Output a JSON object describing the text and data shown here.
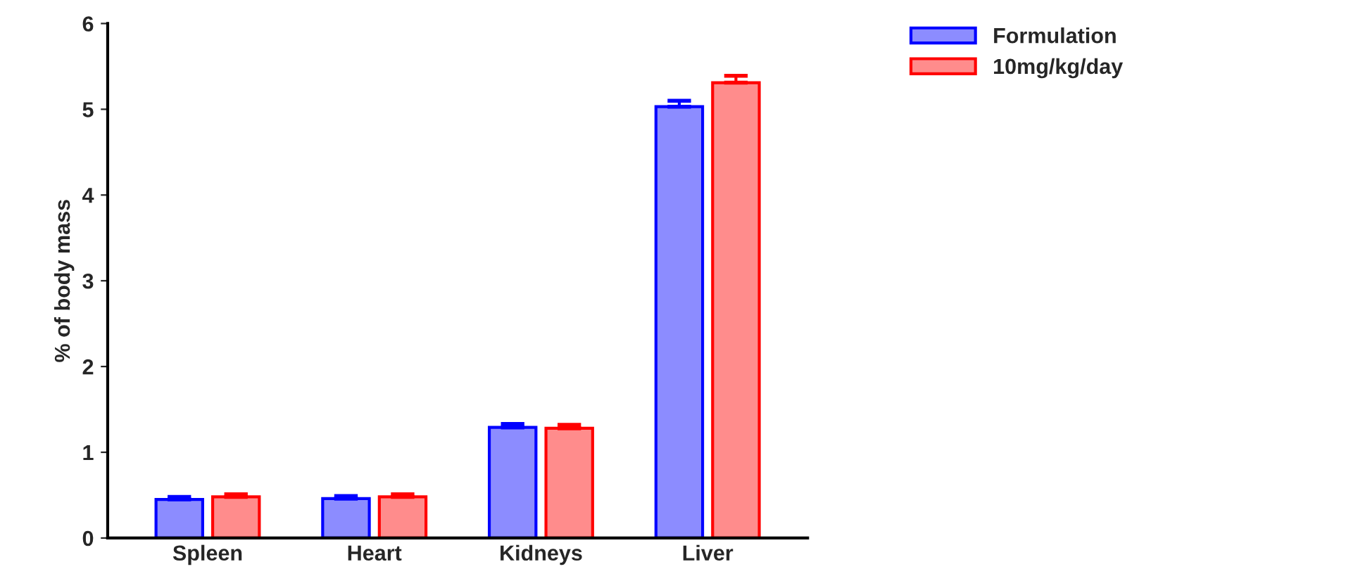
{
  "chart_data": {
    "type": "bar",
    "ylabel": "% of body mass",
    "categories": [
      "Spleen",
      "Heart",
      "Kidneys",
      "Liver"
    ],
    "series": [
      {
        "name": "Formulation",
        "color": "#0000ff",
        "values": [
          0.45,
          0.46,
          1.29,
          5.03
        ],
        "errors": [
          0.03,
          0.03,
          0.04,
          0.07
        ]
      },
      {
        "name": "10mg/kg/day",
        "color": "#ff0000",
        "values": [
          0.48,
          0.48,
          1.28,
          5.31
        ],
        "errors": [
          0.03,
          0.03,
          0.04,
          0.08
        ]
      }
    ],
    "ylim": [
      0,
      6
    ],
    "yticks": [
      0,
      1,
      2,
      3,
      4,
      5,
      6
    ],
    "grid": false,
    "legend": "top right"
  }
}
